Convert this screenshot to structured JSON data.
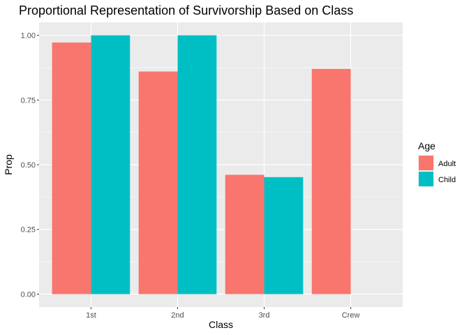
{
  "chart_data": {
    "type": "bar",
    "title": "Proportional Representation of Survivorship Based on Class",
    "xlabel": "Class",
    "ylabel": "Prop",
    "categories": [
      "1st",
      "2nd",
      "3rd",
      "Crew"
    ],
    "series": [
      {
        "name": "Adult",
        "color": "#F8766D",
        "values": [
          0.972,
          0.86,
          0.461,
          0.87
        ]
      },
      {
        "name": "Child",
        "color": "#00BFC4",
        "values": [
          1.0,
          1.0,
          0.452,
          null
        ]
      }
    ],
    "ylim": [
      -0.05,
      1.05
    ],
    "yticks": [
      0.0,
      0.25,
      0.5,
      0.75,
      1.0
    ],
    "ytick_labels": [
      "0.00",
      "0.25",
      "0.50",
      "0.75",
      "1.00"
    ],
    "legend": {
      "title": "Age",
      "position": "right"
    },
    "grid": true,
    "panel_color": "#EBEBEB"
  }
}
